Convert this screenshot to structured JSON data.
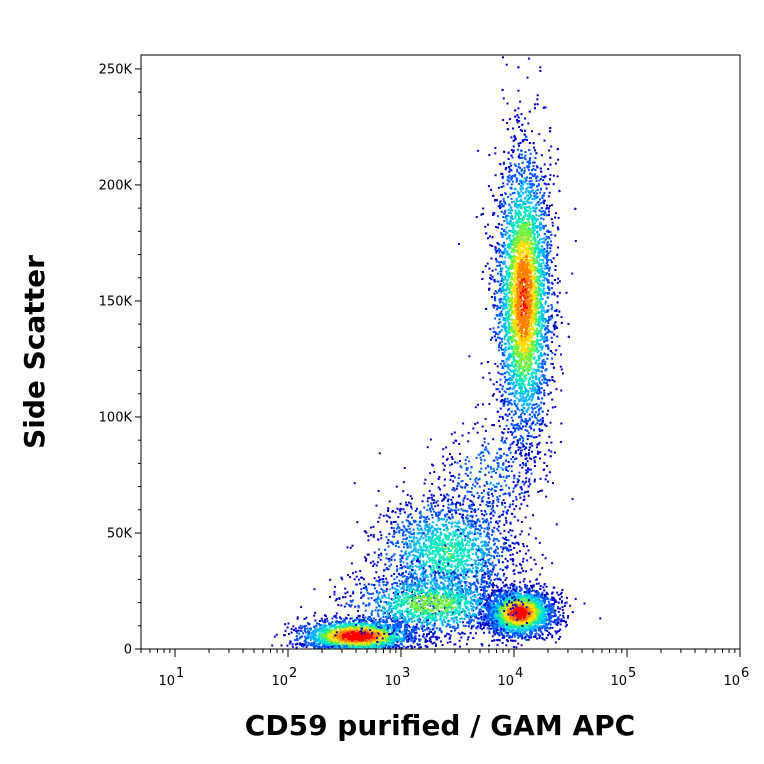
{
  "chart_data": {
    "type": "scatter",
    "subtype": "flow-cytometry-density-plot",
    "xlabel": "CD59 purified / GAM APC",
    "ylabel": "Side Scatter",
    "x_scale": "log",
    "xlim": [
      5,
      1000000
    ],
    "ylim": [
      0,
      256000
    ],
    "x_ticks": [
      {
        "value": 10,
        "base": "10",
        "exp": "1"
      },
      {
        "value": 100,
        "base": "10",
        "exp": "2"
      },
      {
        "value": 1000,
        "base": "10",
        "exp": "3"
      },
      {
        "value": 10000,
        "base": "10",
        "exp": "4"
      },
      {
        "value": 100000,
        "base": "10",
        "exp": "5"
      },
      {
        "value": 1000000,
        "base": "10",
        "exp": "6"
      }
    ],
    "y_ticks": [
      {
        "value": 0,
        "label": "0"
      },
      {
        "value": 50000,
        "label": "50K"
      },
      {
        "value": 100000,
        "label": "100K"
      },
      {
        "value": 150000,
        "label": "150K"
      },
      {
        "value": 200000,
        "label": "200K"
      },
      {
        "value": 250000,
        "label": "250K"
      }
    ],
    "grid": false,
    "legend": "none",
    "colormap": [
      "#0000cc",
      "#0055ff",
      "#00b4ff",
      "#00e8c0",
      "#70f040",
      "#ffe000",
      "#ff8000",
      "#ff0000"
    ],
    "populations": [
      {
        "x_center": 12000,
        "x_log_sd": 0.12,
        "y_center": 152000,
        "y_sd": 30000,
        "count": 5200,
        "peak_density": 0.85
      },
      {
        "x_center": 11000,
        "x_log_sd": 0.15,
        "y_center": 16000,
        "y_sd": 5000,
        "count": 2600,
        "peak_density": 0.95
      },
      {
        "x_center": 400,
        "x_log_sd": 0.25,
        "y_center": 6000,
        "y_sd": 3500,
        "count": 2200,
        "peak_density": 1.0
      },
      {
        "x_center": 2500,
        "x_log_sd": 0.3,
        "y_center": 42000,
        "y_sd": 12000,
        "count": 1800,
        "peak_density": 0.45
      },
      {
        "x_center": 1800,
        "x_log_sd": 0.35,
        "y_center": 20000,
        "y_sd": 7000,
        "count": 1400,
        "peak_density": 0.55
      },
      {
        "x_center": 6000,
        "x_log_sd": 0.25,
        "y_center": 75000,
        "y_sd": 12000,
        "count": 350,
        "peak_density": 0.2
      }
    ]
  }
}
